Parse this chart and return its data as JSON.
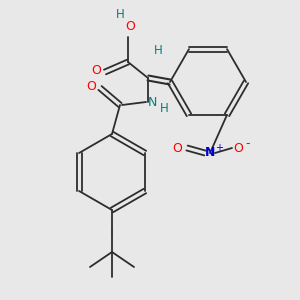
{
  "background_color": "#e8e8e8",
  "bond_color": "#2d2d2d",
  "atom_colors": {
    "O": "#ff0000",
    "N_amide": "#008080",
    "N_nitro": "#0000cd",
    "O_nitro": "#ff0000",
    "H": "#008080",
    "C": "#2d2d2d"
  },
  "figsize": [
    3.0,
    3.0
  ],
  "dpi": 100
}
